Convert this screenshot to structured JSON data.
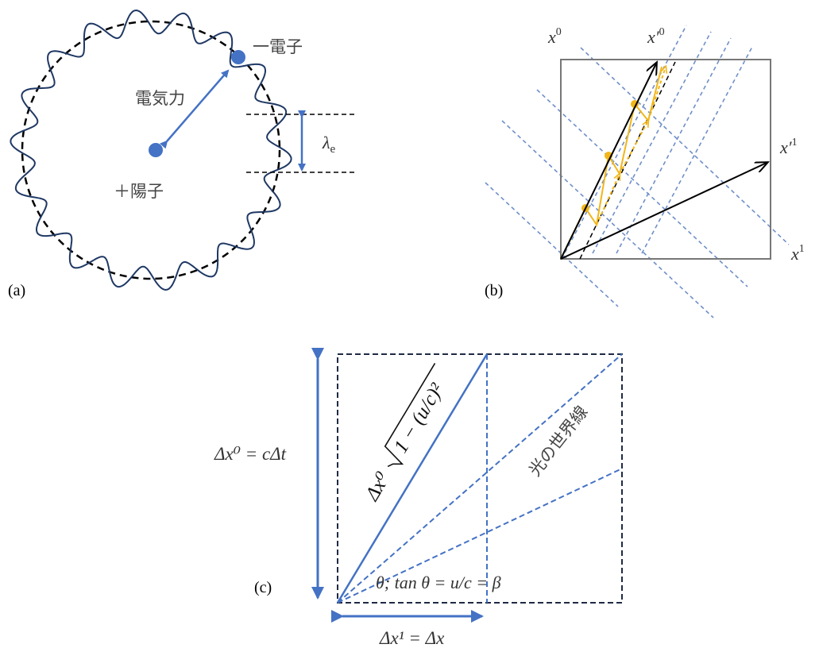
{
  "colors": {
    "blue": "#4472c4",
    "navy": "#1f3864",
    "gold": "#f2b619",
    "dashblue": "#6f8fc8",
    "black": "#000000",
    "gray": "#777777"
  },
  "panel_a": {
    "label": "(a)",
    "electron": "一電子",
    "force": "電気力",
    "proton": "＋陽子",
    "wavelength": "λ",
    "wavelength_sub": "e"
  },
  "panel_b": {
    "label": "(b)",
    "x0": "x",
    "x0_sup": "0",
    "x0p": "x′",
    "x0p_sup": "0",
    "x1p": "x′",
    "x1p_sup": "1",
    "x1": "x",
    "x1_sup": "1"
  },
  "panel_c": {
    "label": "(c)",
    "vertical": "Δx⁰ = cΔt",
    "horizontal": "Δx¹ = Δx",
    "proper": "Δx⁰",
    "sqrt_term": "1 − (u/c)²",
    "light_worldline": "光の世界線",
    "angle": "θ;   tan θ = u/c = β"
  }
}
